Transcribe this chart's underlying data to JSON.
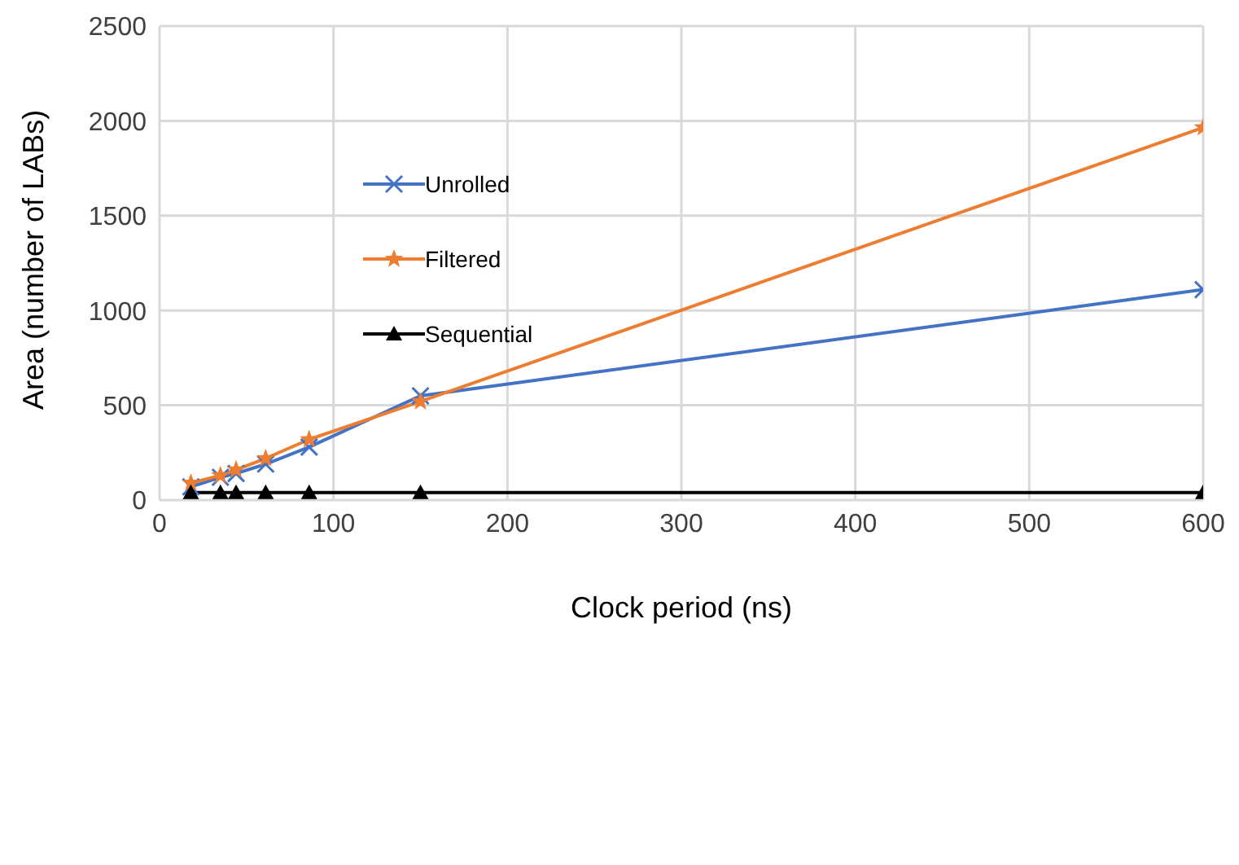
{
  "chart_data": {
    "type": "line",
    "xlabel": "Clock period (ns)",
    "ylabel": "Area (number of LABs)",
    "x": [
      18,
      35,
      44,
      61,
      86,
      150,
      600
    ],
    "series": [
      {
        "name": "Unrolled",
        "color": "#4472c4",
        "marker": "cross",
        "values": [
          70,
          120,
          140,
          190,
          280,
          550,
          1110
        ]
      },
      {
        "name": "Filtered",
        "color": "#ed7d31",
        "marker": "star",
        "values": [
          90,
          130,
          160,
          220,
          320,
          520,
          1965
        ]
      },
      {
        "name": "Sequential",
        "color": "#000000",
        "marker": "triangle",
        "values": [
          40,
          40,
          40,
          40,
          40,
          40,
          40
        ]
      }
    ],
    "xlim": [
      0,
      600
    ],
    "xticks": [
      0,
      100,
      200,
      300,
      400,
      500,
      600
    ],
    "ylim": [
      0,
      2500
    ],
    "yticks": [
      0,
      500,
      1000,
      1500,
      2000,
      2500
    ],
    "grid": true,
    "legend": "top left",
    "line_style": "solid"
  }
}
